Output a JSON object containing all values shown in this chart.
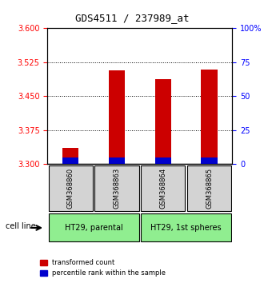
{
  "title": "GDS4511 / 237989_at",
  "samples": [
    "GSM368860",
    "GSM368863",
    "GSM368864",
    "GSM368865"
  ],
  "cell_lines": [
    "HT29, parental",
    "HT29, 1st spheres"
  ],
  "cell_line_groups": [
    2,
    2
  ],
  "transformed_counts": [
    3.335,
    3.508,
    3.487,
    3.509
  ],
  "percentile_ranks": [
    0.07,
    0.07,
    0.07,
    0.07
  ],
  "ylim_left": [
    3.3,
    3.6
  ],
  "ylim_right": [
    0,
    100
  ],
  "yticks_left": [
    3.3,
    3.375,
    3.45,
    3.525,
    3.6
  ],
  "yticks_right": [
    0,
    25,
    50,
    75,
    100
  ],
  "ytick_labels_right": [
    "0",
    "25",
    "50",
    "75",
    "100%"
  ],
  "bar_width": 0.35,
  "red_color": "#cc0000",
  "blue_color": "#0000cc",
  "bg_color": "#d3d3d3",
  "green_color": "#90ee90",
  "grid_color": "#000000",
  "bar_base": 3.3,
  "percentile_bar_height": 0.015,
  "legend_red": "transformed count",
  "legend_blue": "percentile rank within the sample"
}
